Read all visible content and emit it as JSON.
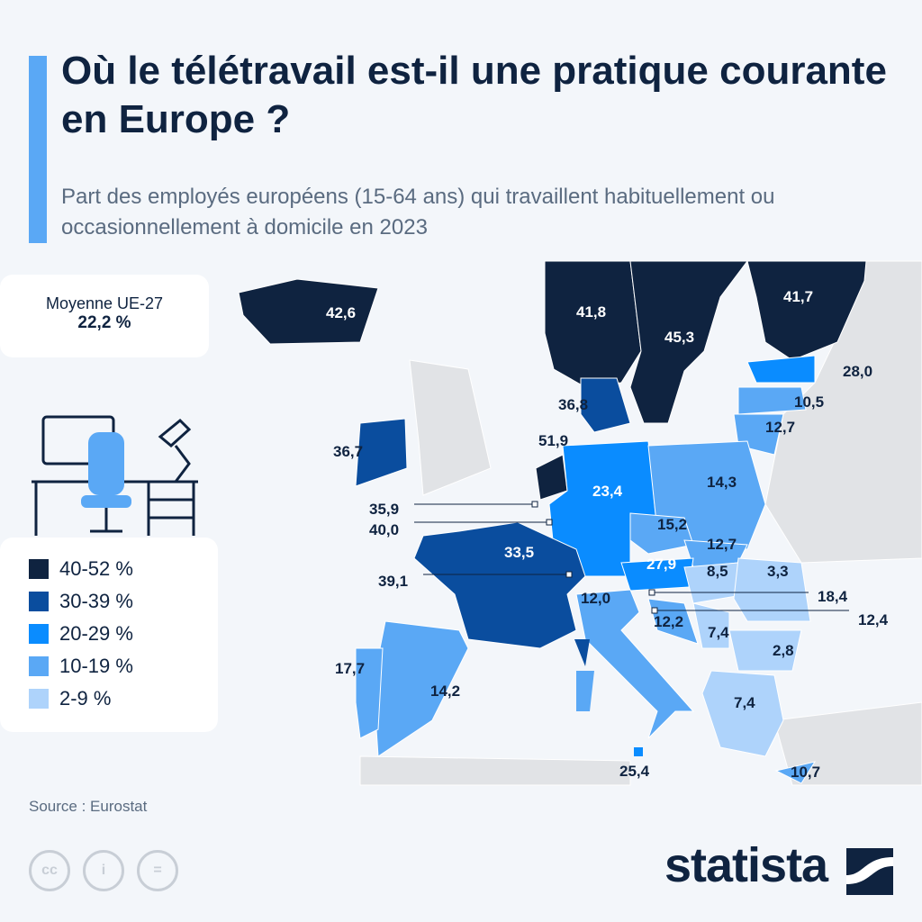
{
  "title": "Où le télétravail est-il une pratique courante en Europe ?",
  "subtitle": "Part des employés européens (15-64 ans) qui travaillent habituellement ou occasionnellement à domicile en 2023",
  "average": {
    "label": "Moyenne UE-27",
    "value": "22,2 %"
  },
  "legend": [
    {
      "label": "40-52 %",
      "color": "#0f2340"
    },
    {
      "label": "30-39 %",
      "color": "#0a4d9e"
    },
    {
      "label": "20-29 %",
      "color": "#0a8cff"
    },
    {
      "label": "10-19 %",
      "color": "#5aa8f5"
    },
    {
      "label": "2-9 %",
      "color": "#aed3fb"
    }
  ],
  "chart_data": {
    "type": "choropleth",
    "title": "Où le télétravail est-il une pratique courante en Europe ?",
    "unit": "%",
    "values": [
      "42,6",
      "41,8",
      "45,3",
      "41,7",
      "28,0",
      "10,5",
      "12,7",
      "36,8",
      "51,9",
      "36,7",
      "35,9",
      "40,0",
      "23,4",
      "14,3",
      "15,2",
      "12,7",
      "27,9",
      "8,5",
      "3,3",
      "18,4",
      "12,4",
      "12,2",
      "7,4",
      "2,8",
      "7,4",
      "33,5",
      "39,1",
      "12,0",
      "14,2",
      "17,7",
      "25,4",
      "10,7"
    ]
  },
  "source": "Source : Eurostat",
  "brand": "statista"
}
